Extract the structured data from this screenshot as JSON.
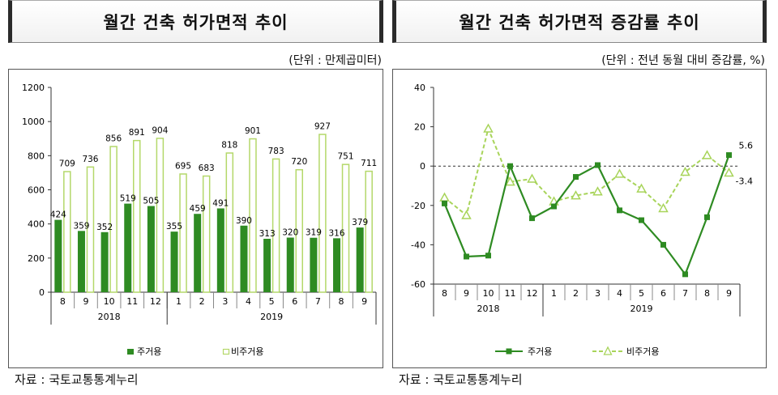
{
  "left": {
    "title": "월간 건축 허가면적 추이",
    "unit": "(단위 : 만제곱미터)",
    "source": "자료 : 국토교통통계누리"
  },
  "right": {
    "title": "월간 건축 허가면적 증감률 추이",
    "unit": "(단위 : 전년 동월 대비 증감률, %)",
    "source": "자료 : 국토교통통계누리"
  },
  "colors": {
    "residential": "#2e8b22",
    "non_residential": "#b4d86a",
    "non_residential_line": "#a8d45a"
  },
  "chart_data": [
    {
      "type": "bar",
      "categories": [
        "8",
        "9",
        "10",
        "11",
        "12",
        "1",
        "2",
        "3",
        "4",
        "5",
        "6",
        "7",
        "8",
        "9"
      ],
      "year_groups": [
        {
          "label": "2018",
          "count": 5
        },
        {
          "label": "2019",
          "count": 9
        }
      ],
      "series": [
        {
          "name": "주거용",
          "values": [
            424,
            359,
            352,
            519,
            505,
            355,
            459,
            491,
            390,
            313,
            320,
            319,
            316,
            379
          ]
        },
        {
          "name": "비주거용",
          "values": [
            709,
            736,
            856,
            891,
            904,
            695,
            683,
            818,
            901,
            783,
            720,
            927,
            751,
            711
          ]
        }
      ],
      "ylim": [
        0,
        1200
      ],
      "yticks": [
        0,
        200,
        400,
        600,
        800,
        1000,
        1200
      ],
      "legend": "bottom",
      "grid": false
    },
    {
      "type": "line",
      "categories": [
        "8",
        "9",
        "10",
        "11",
        "12",
        "1",
        "2",
        "3",
        "4",
        "5",
        "6",
        "7",
        "8",
        "9"
      ],
      "year_groups": [
        {
          "label": "2018",
          "count": 5
        },
        {
          "label": "2019",
          "count": 9
        }
      ],
      "series": [
        {
          "name": "주거용",
          "values": [
            -19,
            -46,
            -45.5,
            0,
            -26.5,
            -20.5,
            -5.5,
            0.5,
            -22.5,
            -27.5,
            -40,
            -55,
            -26,
            5.6
          ]
        },
        {
          "name": "비주거용",
          "values": [
            -16,
            -25,
            19,
            -8,
            -6.5,
            -18,
            -15,
            -13,
            -4,
            -11.5,
            -21.5,
            -3,
            5.5,
            -3.4
          ]
        }
      ],
      "annotations": [
        {
          "text": "5.6"
        },
        {
          "text": "-3.4"
        }
      ],
      "ylim": [
        -60,
        40
      ],
      "yticks": [
        -60,
        -40,
        -20,
        0,
        20,
        40
      ],
      "legend": "bottom",
      "grid": false
    }
  ]
}
